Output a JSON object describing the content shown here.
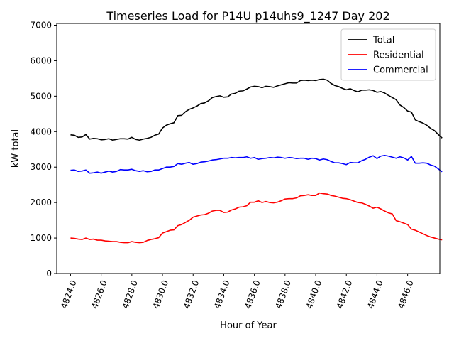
{
  "chart_data": {
    "type": "line",
    "title": "Timeseries Load for P14U p14uhs9_1247  Day 202",
    "xlabel": "Hour of Year",
    "ylabel": "kW total",
    "xlim": [
      4823.1,
      4848.1
    ],
    "ylim": [
      0,
      7050
    ],
    "x_ticks": [
      4824,
      4826,
      4828,
      4830,
      4832,
      4834,
      4836,
      4838,
      4840,
      4842,
      4844,
      4846
    ],
    "x_tick_labels": [
      "4824.0",
      "4826.0",
      "4828.0",
      "4830.0",
      "4832.0",
      "4834.0",
      "4836.0",
      "4838.0",
      "4840.0",
      "4842.0",
      "4844.0",
      "4846.0"
    ],
    "y_ticks": [
      0,
      1000,
      2000,
      3000,
      4000,
      5000,
      6000,
      7000
    ],
    "y_tick_labels": [
      "0",
      "1000",
      "2000",
      "3000",
      "4000",
      "5000",
      "6000",
      "7000"
    ],
    "legend_position": "top-right",
    "series": [
      {
        "name": "Total",
        "color": "#000000",
        "points": [
          [
            4824.0,
            3910
          ],
          [
            4824.25,
            3900
          ],
          [
            4824.5,
            3840
          ],
          [
            4824.75,
            3850
          ],
          [
            4825.0,
            3920
          ],
          [
            4825.25,
            3790
          ],
          [
            4825.5,
            3810
          ],
          [
            4825.75,
            3800
          ],
          [
            4826.0,
            3770
          ],
          [
            4826.25,
            3780
          ],
          [
            4826.5,
            3800
          ],
          [
            4826.75,
            3760
          ],
          [
            4827.0,
            3780
          ],
          [
            4827.25,
            3800
          ],
          [
            4827.5,
            3800
          ],
          [
            4827.75,
            3790
          ],
          [
            4828.0,
            3840
          ],
          [
            4828.25,
            3780
          ],
          [
            4828.5,
            3760
          ],
          [
            4828.75,
            3790
          ],
          [
            4829.0,
            3810
          ],
          [
            4829.25,
            3840
          ],
          [
            4829.5,
            3900
          ],
          [
            4829.75,
            3930
          ],
          [
            4830.0,
            4100
          ],
          [
            4830.25,
            4180
          ],
          [
            4830.5,
            4220
          ],
          [
            4830.75,
            4250
          ],
          [
            4831.0,
            4450
          ],
          [
            4831.25,
            4460
          ],
          [
            4831.5,
            4560
          ],
          [
            4831.75,
            4630
          ],
          [
            4832.0,
            4670
          ],
          [
            4832.25,
            4720
          ],
          [
            4832.5,
            4790
          ],
          [
            4832.75,
            4810
          ],
          [
            4833.0,
            4870
          ],
          [
            4833.25,
            4960
          ],
          [
            4833.5,
            4990
          ],
          [
            4833.75,
            5010
          ],
          [
            4834.0,
            4970
          ],
          [
            4834.25,
            4980
          ],
          [
            4834.5,
            5060
          ],
          [
            4834.75,
            5080
          ],
          [
            4835.0,
            5140
          ],
          [
            4835.25,
            5150
          ],
          [
            4835.5,
            5200
          ],
          [
            4835.75,
            5260
          ],
          [
            4836.0,
            5280
          ],
          [
            4836.25,
            5270
          ],
          [
            4836.5,
            5240
          ],
          [
            4836.75,
            5280
          ],
          [
            4837.0,
            5270
          ],
          [
            4837.25,
            5250
          ],
          [
            4837.5,
            5290
          ],
          [
            4837.75,
            5320
          ],
          [
            4838.0,
            5350
          ],
          [
            4838.25,
            5380
          ],
          [
            4838.5,
            5370
          ],
          [
            4838.75,
            5370
          ],
          [
            4839.0,
            5440
          ],
          [
            4839.25,
            5450
          ],
          [
            4839.5,
            5440
          ],
          [
            4839.75,
            5450
          ],
          [
            4840.0,
            5440
          ],
          [
            4840.25,
            5470
          ],
          [
            4840.5,
            5480
          ],
          [
            4840.75,
            5450
          ],
          [
            4841.0,
            5360
          ],
          [
            4841.25,
            5300
          ],
          [
            4841.5,
            5270
          ],
          [
            4841.75,
            5220
          ],
          [
            4842.0,
            5180
          ],
          [
            4842.25,
            5210
          ],
          [
            4842.5,
            5160
          ],
          [
            4842.75,
            5120
          ],
          [
            4843.0,
            5170
          ],
          [
            4843.25,
            5170
          ],
          [
            4843.5,
            5180
          ],
          [
            4843.75,
            5160
          ],
          [
            4844.0,
            5110
          ],
          [
            4844.25,
            5130
          ],
          [
            4844.5,
            5090
          ],
          [
            4844.75,
            5020
          ],
          [
            4845.0,
            4960
          ],
          [
            4845.25,
            4900
          ],
          [
            4845.5,
            4750
          ],
          [
            4845.75,
            4680
          ],
          [
            4846.0,
            4580
          ],
          [
            4846.25,
            4550
          ],
          [
            4846.5,
            4330
          ],
          [
            4846.75,
            4280
          ],
          [
            4847.0,
            4240
          ],
          [
            4847.25,
            4180
          ],
          [
            4847.5,
            4090
          ],
          [
            4847.75,
            4030
          ],
          [
            4848.0,
            3920
          ],
          [
            4848.25,
            3820
          ]
        ]
      },
      {
        "name": "Residential",
        "color": "#ff0000",
        "points": [
          [
            4824.0,
            1000
          ],
          [
            4824.25,
            990
          ],
          [
            4824.5,
            970
          ],
          [
            4824.75,
            960
          ],
          [
            4825.0,
            1000
          ],
          [
            4825.25,
            960
          ],
          [
            4825.5,
            970
          ],
          [
            4825.75,
            940
          ],
          [
            4826.0,
            940
          ],
          [
            4826.25,
            920
          ],
          [
            4826.5,
            910
          ],
          [
            4826.75,
            900
          ],
          [
            4827.0,
            900
          ],
          [
            4827.25,
            880
          ],
          [
            4827.5,
            870
          ],
          [
            4827.75,
            870
          ],
          [
            4828.0,
            900
          ],
          [
            4828.25,
            880
          ],
          [
            4828.5,
            870
          ],
          [
            4828.75,
            880
          ],
          [
            4829.0,
            930
          ],
          [
            4829.25,
            960
          ],
          [
            4829.5,
            980
          ],
          [
            4829.75,
            1010
          ],
          [
            4830.0,
            1140
          ],
          [
            4830.25,
            1180
          ],
          [
            4830.5,
            1220
          ],
          [
            4830.75,
            1230
          ],
          [
            4831.0,
            1350
          ],
          [
            4831.25,
            1380
          ],
          [
            4831.5,
            1440
          ],
          [
            4831.75,
            1500
          ],
          [
            4832.0,
            1590
          ],
          [
            4832.25,
            1620
          ],
          [
            4832.5,
            1650
          ],
          [
            4832.75,
            1660
          ],
          [
            4833.0,
            1700
          ],
          [
            4833.25,
            1760
          ],
          [
            4833.5,
            1780
          ],
          [
            4833.75,
            1780
          ],
          [
            4834.0,
            1720
          ],
          [
            4834.25,
            1730
          ],
          [
            4834.5,
            1790
          ],
          [
            4834.75,
            1820
          ],
          [
            4835.0,
            1870
          ],
          [
            4835.25,
            1880
          ],
          [
            4835.5,
            1910
          ],
          [
            4835.75,
            2010
          ],
          [
            4836.0,
            2010
          ],
          [
            4836.25,
            2050
          ],
          [
            4836.5,
            2000
          ],
          [
            4836.75,
            2030
          ],
          [
            4837.0,
            2000
          ],
          [
            4837.25,
            1990
          ],
          [
            4837.5,
            2010
          ],
          [
            4837.75,
            2050
          ],
          [
            4838.0,
            2100
          ],
          [
            4838.25,
            2110
          ],
          [
            4838.5,
            2110
          ],
          [
            4838.75,
            2130
          ],
          [
            4839.0,
            2190
          ],
          [
            4839.25,
            2200
          ],
          [
            4839.5,
            2220
          ],
          [
            4839.75,
            2200
          ],
          [
            4840.0,
            2200
          ],
          [
            4840.25,
            2270
          ],
          [
            4840.5,
            2250
          ],
          [
            4840.75,
            2240
          ],
          [
            4841.0,
            2200
          ],
          [
            4841.25,
            2180
          ],
          [
            4841.5,
            2150
          ],
          [
            4841.75,
            2120
          ],
          [
            4842.0,
            2110
          ],
          [
            4842.25,
            2080
          ],
          [
            4842.5,
            2040
          ],
          [
            4842.75,
            2000
          ],
          [
            4843.0,
            1990
          ],
          [
            4843.25,
            1950
          ],
          [
            4843.5,
            1900
          ],
          [
            4843.75,
            1840
          ],
          [
            4844.0,
            1870
          ],
          [
            4844.25,
            1820
          ],
          [
            4844.5,
            1760
          ],
          [
            4844.75,
            1710
          ],
          [
            4845.0,
            1680
          ],
          [
            4845.25,
            1490
          ],
          [
            4845.5,
            1460
          ],
          [
            4845.75,
            1420
          ],
          [
            4846.0,
            1380
          ],
          [
            4846.25,
            1250
          ],
          [
            4846.5,
            1220
          ],
          [
            4846.75,
            1170
          ],
          [
            4847.0,
            1120
          ],
          [
            4847.25,
            1070
          ],
          [
            4847.5,
            1030
          ],
          [
            4847.75,
            1000
          ],
          [
            4848.0,
            970
          ],
          [
            4848.25,
            950
          ]
        ]
      },
      {
        "name": "Commercial",
        "color": "#0000ff",
        "points": [
          [
            4824.0,
            2910
          ],
          [
            4824.25,
            2920
          ],
          [
            4824.5,
            2880
          ],
          [
            4824.75,
            2890
          ],
          [
            4825.0,
            2920
          ],
          [
            4825.25,
            2830
          ],
          [
            4825.5,
            2840
          ],
          [
            4825.75,
            2860
          ],
          [
            4826.0,
            2830
          ],
          [
            4826.25,
            2860
          ],
          [
            4826.5,
            2890
          ],
          [
            4826.75,
            2860
          ],
          [
            4827.0,
            2880
          ],
          [
            4827.25,
            2930
          ],
          [
            4827.5,
            2920
          ],
          [
            4827.75,
            2920
          ],
          [
            4828.0,
            2940
          ],
          [
            4828.25,
            2900
          ],
          [
            4828.5,
            2880
          ],
          [
            4828.75,
            2900
          ],
          [
            4829.0,
            2870
          ],
          [
            4829.25,
            2880
          ],
          [
            4829.5,
            2920
          ],
          [
            4829.75,
            2920
          ],
          [
            4830.0,
            2960
          ],
          [
            4830.25,
            3000
          ],
          [
            4830.5,
            3000
          ],
          [
            4830.75,
            3020
          ],
          [
            4831.0,
            3100
          ],
          [
            4831.25,
            3080
          ],
          [
            4831.5,
            3110
          ],
          [
            4831.75,
            3130
          ],
          [
            4832.0,
            3080
          ],
          [
            4832.25,
            3100
          ],
          [
            4832.5,
            3140
          ],
          [
            4832.75,
            3150
          ],
          [
            4833.0,
            3170
          ],
          [
            4833.25,
            3200
          ],
          [
            4833.5,
            3210
          ],
          [
            4833.75,
            3230
          ],
          [
            4834.0,
            3250
          ],
          [
            4834.25,
            3250
          ],
          [
            4834.5,
            3270
          ],
          [
            4834.75,
            3260
          ],
          [
            4835.0,
            3270
          ],
          [
            4835.25,
            3270
          ],
          [
            4835.5,
            3290
          ],
          [
            4835.75,
            3250
          ],
          [
            4836.0,
            3270
          ],
          [
            4836.25,
            3220
          ],
          [
            4836.5,
            3240
          ],
          [
            4836.75,
            3250
          ],
          [
            4837.0,
            3270
          ],
          [
            4837.25,
            3260
          ],
          [
            4837.5,
            3280
          ],
          [
            4837.75,
            3270
          ],
          [
            4838.0,
            3250
          ],
          [
            4838.25,
            3270
          ],
          [
            4838.5,
            3260
          ],
          [
            4838.75,
            3240
          ],
          [
            4839.0,
            3250
          ],
          [
            4839.25,
            3250
          ],
          [
            4839.5,
            3220
          ],
          [
            4839.75,
            3250
          ],
          [
            4840.0,
            3240
          ],
          [
            4840.25,
            3200
          ],
          [
            4840.5,
            3230
          ],
          [
            4840.75,
            3210
          ],
          [
            4841.0,
            3160
          ],
          [
            4841.25,
            3120
          ],
          [
            4841.5,
            3120
          ],
          [
            4841.75,
            3100
          ],
          [
            4842.0,
            3070
          ],
          [
            4842.25,
            3130
          ],
          [
            4842.5,
            3120
          ],
          [
            4842.75,
            3120
          ],
          [
            4843.0,
            3180
          ],
          [
            4843.25,
            3220
          ],
          [
            4843.5,
            3280
          ],
          [
            4843.75,
            3320
          ],
          [
            4844.0,
            3240
          ],
          [
            4844.25,
            3310
          ],
          [
            4844.5,
            3330
          ],
          [
            4844.75,
            3310
          ],
          [
            4845.0,
            3280
          ],
          [
            4845.25,
            3250
          ],
          [
            4845.5,
            3290
          ],
          [
            4845.75,
            3260
          ],
          [
            4846.0,
            3200
          ],
          [
            4846.25,
            3300
          ],
          [
            4846.5,
            3110
          ],
          [
            4846.75,
            3110
          ],
          [
            4847.0,
            3120
          ],
          [
            4847.25,
            3110
          ],
          [
            4847.5,
            3060
          ],
          [
            4847.75,
            3030
          ],
          [
            4848.0,
            2950
          ],
          [
            4848.25,
            2870
          ]
        ]
      }
    ]
  }
}
